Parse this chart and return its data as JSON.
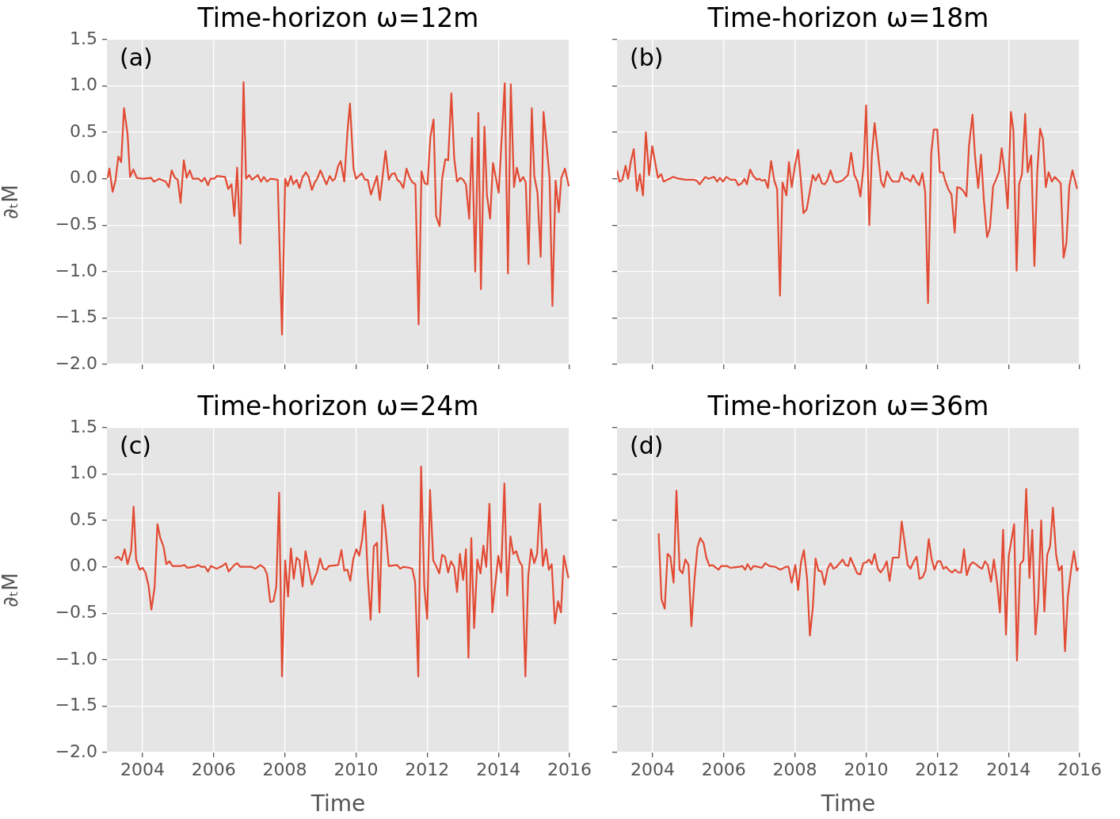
{
  "chart_data": [
    {
      "type": "line",
      "title": "Time-horizon ω=12m",
      "ylabel": "∂ₜM",
      "annotations": [
        "(a)"
      ],
      "xlim": [
        2003,
        2016
      ],
      "xticks": [
        2004,
        2006,
        2008,
        2010,
        2012,
        2014,
        2016
      ],
      "ylim": [
        -2,
        1.5
      ],
      "yticks": [
        {
          "value": -2,
          "label": "−2.0"
        },
        {
          "value": -1.5,
          "label": "−1.5"
        },
        {
          "value": -1,
          "label": "−1.0"
        },
        {
          "value": -0.5,
          "label": "−0.5"
        },
        {
          "value": 0,
          "label": "0.0"
        },
        {
          "value": 0.5,
          "label": "0.5"
        },
        {
          "value": 1,
          "label": "1.0"
        },
        {
          "value": 1.5,
          "label": "1.5"
        }
      ],
      "grid": true,
      "tick_labels": "y",
      "series": [
        {
          "color": "#e24a33",
          "x": [
            2003.02,
            2003.07,
            2003.16,
            2003.24,
            2003.32,
            2003.4,
            2003.48,
            2003.58,
            2003.65,
            2003.74,
            2003.84,
            2004.02,
            2004.24,
            2004.32,
            2004.47,
            2004.65,
            2004.74,
            2004.82,
            2004.91,
            2004.99,
            2005.07,
            2005.16,
            2005.24,
            2005.33,
            2005.41,
            2005.58,
            2005.66,
            2005.75,
            2005.84,
            2005.91,
            2006.01,
            2006.1,
            2006.32,
            2006.41,
            2006.5,
            2006.58,
            2006.66,
            2006.75,
            2006.84,
            2006.91,
            2007.0,
            2007.08,
            2007.24,
            2007.33,
            2007.41,
            2007.5,
            2007.59,
            2007.8,
            2007.92,
            2008.01,
            2008.08,
            2008.17,
            2008.24,
            2008.33,
            2008.41,
            2008.5,
            2008.59,
            2008.67,
            2008.76,
            2008.84,
            2008.91,
            2009.0,
            2009.1,
            2009.17,
            2009.26,
            2009.34,
            2009.41,
            2009.5,
            2009.57,
            2009.67,
            2009.76,
            2009.83,
            2009.93,
            2010.0,
            2010.16,
            2010.25,
            2010.33,
            2010.42,
            2010.59,
            2010.67,
            2010.83,
            2010.92,
            2011.0,
            2011.09,
            2011.16,
            2011.25,
            2011.33,
            2011.42,
            2011.51,
            2011.59,
            2011.67,
            2011.76,
            2011.84,
            2011.93,
            2012.01,
            2012.09,
            2012.18,
            2012.25,
            2012.35,
            2012.42,
            2012.51,
            2012.59,
            2012.68,
            2012.76,
            2012.84,
            2012.93,
            2013.01,
            2013.09,
            2013.18,
            2013.26,
            2013.35,
            2013.44,
            2013.51,
            2013.61,
            2013.68,
            2013.77,
            2013.85,
            2014.01,
            2014.18,
            2014.27,
            2014.35,
            2014.44,
            2014.52,
            2014.61,
            2014.7,
            2014.77,
            2014.85,
            2014.94,
            2015.01,
            2015.1,
            2015.19,
            2015.27,
            2015.35,
            2015.44,
            2015.52,
            2015.61,
            2015.7,
            2015.77,
            2015.87,
            2015.98
          ],
          "values": [
            0.01,
            0.11,
            -0.14,
            -0.02,
            0.24,
            0.18,
            0.76,
            0.48,
            0.02,
            0.1,
            0.01,
            0,
            0.01,
            -0.03,
            0,
            -0.03,
            -0.09,
            0.09,
            0.01,
            -0.01,
            -0.26,
            0.2,
            0.01,
            0.09,
            0,
            0,
            -0.03,
            0.01,
            -0.07,
            0,
            0,
            0.03,
            0.02,
            -0.11,
            -0.06,
            -0.4,
            0.12,
            -0.7,
            1.04,
            0,
            0.04,
            -0.01,
            0.04,
            -0.03,
            0.02,
            -0.03,
            0,
            -0.01,
            -1.68,
            0,
            -0.08,
            0.03,
            -0.06,
            -0.01,
            -0.1,
            0.02,
            0.07,
            0.02,
            -0.12,
            -0.04,
            0,
            0.09,
            0,
            -0.06,
            0.03,
            -0.02,
            0,
            0.14,
            0.19,
            -0.03,
            0.51,
            0.81,
            0.11,
            0,
            0.06,
            -0.01,
            -0.01,
            -0.17,
            0.03,
            -0.23,
            0.3,
            -0.01,
            0.05,
            0.06,
            -0.01,
            -0.04,
            -0.1,
            0.11,
            0.01,
            -0.04,
            -0.06,
            -1.57,
            0.08,
            -0.05,
            -0.06,
            0.45,
            0.64,
            -0.4,
            -0.51,
            0,
            0.21,
            0.2,
            0.92,
            0.22,
            -0.03,
            0.01,
            -0.01,
            -0.06,
            -0.43,
            0.44,
            -1.0,
            0.71,
            -1.19,
            0.56,
            -0.18,
            -0.43,
            0.17,
            -0.15,
            1.03,
            -1.02,
            1.02,
            -0.09,
            0.12,
            -0.03,
            0.02,
            -0.04,
            -0.92,
            0.76,
            0.03,
            -0.15,
            -0.84,
            0.72,
            0.39,
            0.01,
            -1.37,
            -0.02,
            -0.36,
            0.01,
            0.11,
            -0.08
          ]
        }
      ]
    },
    {
      "type": "line",
      "title": "Time-horizon ω=18m",
      "annotations": [
        "(b)"
      ],
      "xlim": [
        2003,
        2016
      ],
      "xticks": [
        2004,
        2006,
        2008,
        2010,
        2012,
        2014,
        2016
      ],
      "ylim": [
        -2,
        1.5
      ],
      "yticks": [
        {
          "value": -2,
          "label": null
        },
        {
          "value": -1.5,
          "label": null
        },
        {
          "value": -1,
          "label": null
        },
        {
          "value": -0.5,
          "label": null
        },
        {
          "value": 0,
          "label": null
        },
        {
          "value": 0.5,
          "label": null
        },
        {
          "value": 1,
          "label": null
        },
        {
          "value": 1.5,
          "label": null
        }
      ],
      "grid": true,
      "tick_labels": false,
      "series": [
        {
          "color": "#e24a33",
          "x": [
            2003.0,
            2003.07,
            2003.15,
            2003.24,
            2003.31,
            2003.39,
            2003.47,
            2003.56,
            2003.64,
            2003.73,
            2003.81,
            2003.9,
            2003.99,
            2004.15,
            2004.24,
            2004.31,
            2004.41,
            2004.48,
            2004.57,
            2004.74,
            2004.93,
            2005.15,
            2005.24,
            2005.32,
            2005.48,
            2005.57,
            2005.73,
            2005.81,
            2005.89,
            2005.98,
            2006.07,
            2006.19,
            2006.33,
            2006.41,
            2006.5,
            2006.58,
            2006.65,
            2006.74,
            2006.83,
            2006.93,
            2007.0,
            2007.07,
            2007.16,
            2007.24,
            2007.33,
            2007.42,
            2007.5,
            2007.58,
            2007.65,
            2007.76,
            2007.83,
            2007.91,
            2008.0,
            2008.09,
            2008.16,
            2008.24,
            2008.33,
            2008.5,
            2008.58,
            2008.67,
            2008.76,
            2008.83,
            2008.91,
            2009.0,
            2009.09,
            2009.17,
            2009.33,
            2009.49,
            2009.58,
            2009.67,
            2009.76,
            2009.84,
            2009.93,
            2010.0,
            2010.09,
            2010.16,
            2010.24,
            2010.33,
            2010.42,
            2010.5,
            2010.59,
            2010.67,
            2010.75,
            2010.92,
            2011.0,
            2011.08,
            2011.17,
            2011.25,
            2011.32,
            2011.41,
            2011.49,
            2011.58,
            2011.66,
            2011.74,
            2011.83,
            2011.9,
            2012.0,
            2012.07,
            2012.16,
            2012.23,
            2012.32,
            2012.4,
            2012.49,
            2012.56,
            2012.65,
            2012.73,
            2012.82,
            2012.89,
            2012.99,
            2013.06,
            2013.15,
            2013.23,
            2013.31,
            2013.4,
            2013.48,
            2013.57,
            2013.65,
            2013.74,
            2013.81,
            2013.9,
            2013.98,
            2014.07,
            2014.14,
            2014.23,
            2014.3,
            2014.38,
            2014.47,
            2014.54,
            2014.64,
            2014.73,
            2014.81,
            2014.89,
            2014.97,
            2015.05,
            2015.13,
            2015.22,
            2015.3,
            2015.38,
            2015.47,
            2015.55,
            2015.63,
            2015.71,
            2015.8,
            2015.93
          ],
          "values": [
            0.09,
            -0.03,
            -0.01,
            0.14,
            0,
            0.19,
            0.32,
            -0.13,
            0.05,
            -0.18,
            0.5,
            0.04,
            0.35,
            0.01,
            0.05,
            -0.03,
            -0.01,
            0,
            0.02,
            0,
            -0.01,
            -0.01,
            -0.02,
            -0.06,
            0.02,
            0,
            0.02,
            -0.03,
            0.01,
            -0.03,
            0.02,
            -0.01,
            -0.01,
            -0.07,
            -0.05,
            0,
            -0.06,
            0.1,
            0.03,
            -0.01,
            0,
            -0.02,
            -0.01,
            -0.1,
            0.19,
            -0.02,
            -0.11,
            -1.26,
            -0.04,
            -0.18,
            0.18,
            -0.09,
            0.14,
            0.31,
            0.01,
            -0.37,
            -0.33,
            0.04,
            -0.02,
            0.05,
            -0.05,
            -0.06,
            -0.02,
            0.09,
            -0.02,
            -0.04,
            -0.02,
            0.04,
            0.28,
            0.04,
            -0.03,
            -0.19,
            0.14,
            0.79,
            -0.5,
            0.25,
            0.6,
            0.28,
            -0.03,
            -0.09,
            0.08,
            0.01,
            -0.03,
            -0.03,
            0.07,
            0,
            0,
            -0.03,
            0.04,
            -0.03,
            -0.07,
            0.06,
            -0.14,
            -1.34,
            0.27,
            0.53,
            0.53,
            0.07,
            0.07,
            -0.03,
            -0.12,
            -0.17,
            -0.58,
            -0.09,
            -0.1,
            -0.13,
            -0.19,
            0.35,
            0.69,
            0.25,
            -0.1,
            0.26,
            -0.23,
            -0.63,
            -0.53,
            -0.08,
            -0.01,
            0.08,
            0.33,
            0.05,
            -0.32,
            0.72,
            0.52,
            -0.99,
            -0.06,
            0.05,
            0.7,
            0.07,
            0.25,
            -0.94,
            0.07,
            0.54,
            0.43,
            -0.09,
            0.07,
            -0.03,
            0.02,
            -0.01,
            -0.05,
            -0.85,
            -0.69,
            -0.08,
            0.09,
            -0.11
          ]
        }
      ]
    },
    {
      "type": "line",
      "title": "Time-horizon ω=24m",
      "xlabel": "Time",
      "ylabel": "∂ₜM",
      "annotations": [
        "(c)"
      ],
      "xlim": [
        2003,
        2016
      ],
      "xticks": [
        2004,
        2006,
        2008,
        2010,
        2012,
        2014,
        2016
      ],
      "ylim": [
        -2,
        1.5
      ],
      "yticks": [
        {
          "value": -2,
          "label": "−2.0"
        },
        {
          "value": -1.5,
          "label": "−1.5"
        },
        {
          "value": -1,
          "label": "−1.0"
        },
        {
          "value": -0.5,
          "label": "−0.5"
        },
        {
          "value": 0,
          "label": "0.0"
        },
        {
          "value": 0.5,
          "label": "0.5"
        },
        {
          "value": 1,
          "label": "1.0"
        },
        {
          "value": 1.5,
          "label": "1.5"
        }
      ],
      "grid": true,
      "series": [
        {
          "color": "#e24a33",
          "x": [
            2003.22,
            2003.32,
            2003.41,
            2003.5,
            2003.58,
            2003.68,
            2003.75,
            2003.82,
            2003.92,
            2004.0,
            2004.08,
            2004.17,
            2004.25,
            2004.34,
            2004.42,
            2004.5,
            2004.59,
            2004.67,
            2004.76,
            2004.84,
            2005.09,
            2005.18,
            2005.26,
            2005.45,
            2005.57,
            2005.66,
            2005.76,
            2005.84,
            2005.92,
            2006.08,
            2006.25,
            2006.34,
            2006.42,
            2006.58,
            2006.66,
            2006.75,
            2007.07,
            2007.17,
            2007.31,
            2007.42,
            2007.5,
            2007.59,
            2007.68,
            2007.76,
            2007.84,
            2007.92,
            2008.01,
            2008.09,
            2008.17,
            2008.25,
            2008.33,
            2008.41,
            2008.5,
            2008.58,
            2008.66,
            2008.76,
            2008.91,
            2008.99,
            2009.08,
            2009.16,
            2009.24,
            2009.5,
            2009.59,
            2009.67,
            2009.76,
            2009.84,
            2009.92,
            2010.01,
            2010.09,
            2010.17,
            2010.25,
            2010.33,
            2010.41,
            2010.5,
            2010.59,
            2010.66,
            2010.75,
            2010.83,
            2010.92,
            2011.16,
            2011.24,
            2011.33,
            2011.51,
            2011.58,
            2011.66,
            2011.75,
            2011.83,
            2011.92,
            2012.0,
            2012.08,
            2012.17,
            2012.25,
            2012.34,
            2012.42,
            2012.5,
            2012.59,
            2012.67,
            2012.76,
            2012.84,
            2012.92,
            2013.01,
            2013.09,
            2013.16,
            2013.24,
            2013.32,
            2013.41,
            2013.5,
            2013.58,
            2013.66,
            2013.75,
            2013.83,
            2014.0,
            2014.08,
            2014.17,
            2014.25,
            2014.34,
            2014.42,
            2014.5,
            2014.59,
            2014.67,
            2014.76,
            2014.84,
            2014.92,
            2015.01,
            2015.09,
            2015.17,
            2015.25,
            2015.34,
            2015.42,
            2015.5,
            2015.59,
            2015.68,
            2015.76,
            2015.84,
            2015.97
          ],
          "values": [
            0.09,
            0.11,
            0.07,
            0.19,
            0.03,
            0.17,
            0.65,
            0.08,
            -0.03,
            -0.01,
            -0.06,
            -0.2,
            -0.46,
            -0.22,
            0.46,
            0.31,
            0.22,
            0.03,
            0.06,
            0.01,
            0.01,
            0.02,
            -0.01,
            0,
            0.02,
            0,
            0,
            -0.05,
            0.01,
            -0.02,
            0.01,
            0.04,
            -0.05,
            0.02,
            0.04,
            0,
            0,
            -0.02,
            0.02,
            -0.01,
            -0.08,
            -0.38,
            -0.37,
            -0.21,
            0.8,
            -1.18,
            0.07,
            -0.32,
            0.2,
            -0.13,
            0.1,
            0.07,
            -0.21,
            0.17,
            0.01,
            -0.19,
            -0.05,
            0.09,
            -0.02,
            -0.03,
            0.01,
            0.02,
            0.18,
            -0.04,
            -0.03,
            -0.15,
            0.08,
            0.19,
            0.12,
            0.29,
            0.6,
            -0.09,
            -0.57,
            0.22,
            0.26,
            -0.49,
            0.67,
            0.4,
            0.01,
            0.02,
            -0.02,
            0,
            -0.01,
            -0.02,
            -0.16,
            -1.18,
            1.08,
            -0.22,
            -0.56,
            0.83,
            0.07,
            0.01,
            -0.07,
            0.13,
            0.11,
            -0.06,
            0.06,
            0,
            -0.27,
            0.14,
            -0.14,
            0.19,
            -0.98,
            0.31,
            -0.66,
            0.08,
            -0.07,
            0.23,
            0,
            0.68,
            -0.49,
            0.12,
            -0.06,
            0.9,
            -0.31,
            0.33,
            0.14,
            0.17,
            0.06,
            0.01,
            -1.18,
            -0.1,
            0.19,
            0.04,
            0.14,
            0.68,
            0.01,
            0.19,
            -0.03,
            0.03,
            -0.61,
            -0.37,
            -0.49,
            0.12,
            -0.12
          ]
        }
      ]
    },
    {
      "type": "line",
      "title": "Time-horizon ω=36m",
      "xlabel": "Time",
      "annotations": [
        "(d)"
      ],
      "xlim": [
        2003,
        2016
      ],
      "xticks": [
        2004,
        2006,
        2008,
        2010,
        2012,
        2014,
        2016
      ],
      "ylim": [
        -2,
        1.5
      ],
      "yticks": [
        {
          "value": -2,
          "label": null
        },
        {
          "value": -1.5,
          "label": null
        },
        {
          "value": -1,
          "label": null
        },
        {
          "value": -0.5,
          "label": null
        },
        {
          "value": 0,
          "label": null
        },
        {
          "value": 0.5,
          "label": null
        },
        {
          "value": 1,
          "label": null
        },
        {
          "value": 1.5,
          "label": null
        }
      ],
      "grid": true,
      "tick_labels": "x",
      "series": [
        {
          "color": "#e24a33",
          "x": [
            2004.17,
            2004.25,
            2004.34,
            2004.42,
            2004.5,
            2004.59,
            2004.67,
            2004.76,
            2004.84,
            2004.92,
            2005.01,
            2005.09,
            2005.18,
            2005.26,
            2005.34,
            2005.43,
            2005.51,
            2005.6,
            2005.68,
            2005.85,
            2005.93,
            2006.09,
            2006.18,
            2006.44,
            2006.52,
            2006.6,
            2006.67,
            2006.76,
            2006.84,
            2007.07,
            2007.17,
            2007.28,
            2007.45,
            2007.59,
            2007.74,
            2007.82,
            2007.91,
            2008.01,
            2008.09,
            2008.17,
            2008.25,
            2008.34,
            2008.42,
            2008.5,
            2008.58,
            2008.66,
            2008.75,
            2008.83,
            2008.92,
            2009.0,
            2009.08,
            2009.17,
            2009.34,
            2009.42,
            2009.5,
            2009.56,
            2009.66,
            2009.75,
            2009.84,
            2009.92,
            2010.01,
            2010.08,
            2010.16,
            2010.24,
            2010.33,
            2010.41,
            2010.5,
            2010.58,
            2010.66,
            2010.75,
            2010.92,
            2011.0,
            2011.08,
            2011.17,
            2011.25,
            2011.34,
            2011.42,
            2011.5,
            2011.59,
            2011.67,
            2011.76,
            2011.84,
            2011.92,
            2012.01,
            2012.09,
            2012.17,
            2012.25,
            2012.34,
            2012.42,
            2012.5,
            2012.59,
            2012.67,
            2012.75,
            2012.83,
            2012.92,
            2013.0,
            2013.08,
            2013.17,
            2013.26,
            2013.34,
            2013.42,
            2013.51,
            2013.59,
            2013.68,
            2013.76,
            2013.85,
            2013.93,
            2014.01,
            2014.16,
            2014.24,
            2014.33,
            2014.42,
            2014.5,
            2014.59,
            2014.67,
            2014.76,
            2014.84,
            2014.92,
            2015.01,
            2015.09,
            2015.17,
            2015.25,
            2015.34,
            2015.42,
            2015.5,
            2015.59,
            2015.67,
            2015.76,
            2015.84,
            2015.92,
            2015.97
          ],
          "values": [
            0.36,
            -0.35,
            -0.45,
            0.14,
            0.11,
            -0.17,
            0.82,
            -0.03,
            -0.07,
            0.08,
            0.02,
            -0.64,
            -0.12,
            0.21,
            0.31,
            0.26,
            0.1,
            0.01,
            0.02,
            -0.03,
            0.01,
            0.01,
            -0.01,
            0,
            0.01,
            -0.03,
            0.03,
            -0.03,
            0.01,
            -0.01,
            0.04,
            0.01,
            0,
            -0.03,
            0,
            0,
            -0.17,
            0.02,
            -0.25,
            0.05,
            0.18,
            -0.12,
            -0.74,
            -0.45,
            0.09,
            -0.04,
            -0.05,
            -0.19,
            -0.02,
            0.04,
            -0.02,
            0,
            0.08,
            0.02,
            0.01,
            0.1,
            0.01,
            -0.07,
            -0.08,
            0.04,
            0.05,
            0.08,
            0.03,
            0.14,
            -0.02,
            -0.06,
            -0.01,
            0.06,
            -0.15,
            0.1,
            0.1,
            0.49,
            0.27,
            0.02,
            -0.02,
            0.06,
            0.11,
            -0.13,
            -0.11,
            -0.04,
            0.3,
            0.09,
            -0.03,
            0.06,
            0.06,
            -0.02,
            0,
            -0.04,
            -0.06,
            -0.03,
            -0.06,
            -0.06,
            0.19,
            -0.09,
            0.02,
            0.05,
            0.03,
            0,
            -0.02,
            0.06,
            0.02,
            -0.16,
            0.08,
            -0.17,
            -0.49,
            0.4,
            -0.73,
            0.12,
            0.46,
            -1.01,
            0.03,
            0.07,
            0.84,
            -0.12,
            0.4,
            -0.73,
            -0.34,
            0.5,
            -0.48,
            0.13,
            0.22,
            0.64,
            0.13,
            -0.04,
            0.01,
            -0.91,
            -0.32,
            -0.03,
            0.17,
            -0.04,
            -0.01
          ]
        }
      ]
    }
  ]
}
